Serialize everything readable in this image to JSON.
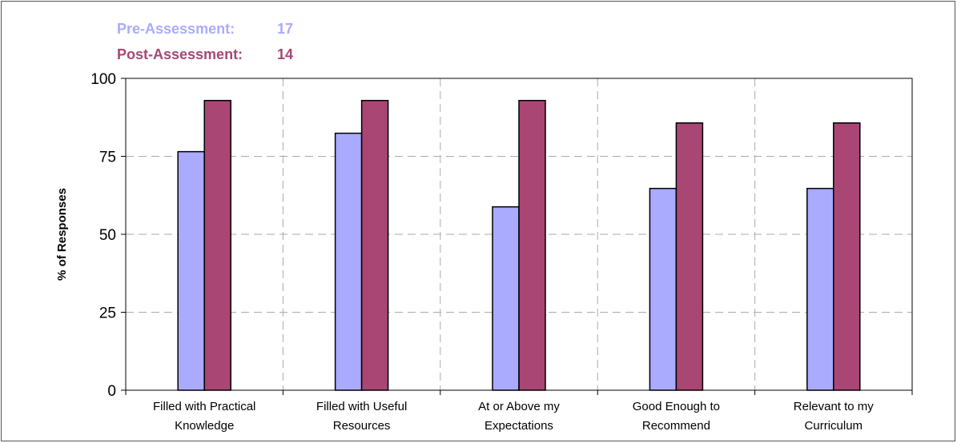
{
  "chart_data": {
    "type": "bar",
    "ylabel": "% of Responses",
    "ylim": [
      0,
      100
    ],
    "yticks": [
      0,
      25,
      50,
      75,
      100
    ],
    "grid": true,
    "legend_placement": "top-left",
    "categories": [
      [
        "Filled with Practical",
        "Knowledge"
      ],
      [
        "Filled with Useful",
        "Resources"
      ],
      [
        "At or Above my",
        "Expectations"
      ],
      [
        "Good Enough to",
        "Recommend"
      ],
      [
        "Relevant to my",
        "Curriculum"
      ]
    ],
    "series": [
      {
        "name": "Pre-Assessment:",
        "count": "17",
        "color": "#aaaaff",
        "values": [
          76.5,
          82.4,
          58.8,
          64.7,
          64.7
        ]
      },
      {
        "name": "Post-Assessment:",
        "count": "14",
        "color": "#a94673",
        "values": [
          92.9,
          92.9,
          92.9,
          85.7,
          85.7
        ]
      }
    ]
  }
}
